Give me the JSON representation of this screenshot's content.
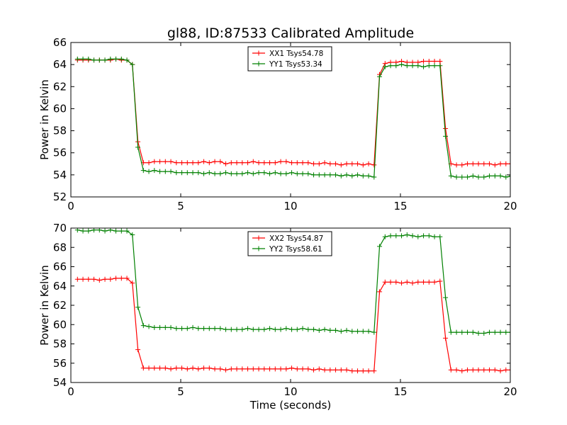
{
  "title": "gl88, ID:87533 Calibrated Amplitude",
  "chart_data": [
    {
      "type": "line",
      "title": "gl88, ID:87533 Calibrated Amplitude",
      "xlabel": "",
      "ylabel": "Power in Kelvin",
      "xlim": [
        0,
        20
      ],
      "ylim": [
        52,
        66
      ],
      "xticks": [
        0,
        5,
        10,
        15,
        20
      ],
      "yticks": [
        52,
        54,
        56,
        58,
        60,
        62,
        64,
        66
      ],
      "legend_position": "top-center",
      "grid": false,
      "series": [
        {
          "name": "XX1 Tsys54.78",
          "color": "#ff0000",
          "x": [
            0.3,
            0.55,
            0.8,
            1.05,
            1.3,
            1.55,
            1.8,
            2.05,
            2.3,
            2.55,
            2.8,
            3.05,
            3.3,
            3.55,
            3.8,
            4.05,
            4.3,
            4.55,
            4.8,
            5.05,
            5.3,
            5.55,
            5.8,
            6.05,
            6.3,
            6.55,
            6.8,
            7.05,
            7.3,
            7.55,
            7.8,
            8.05,
            8.3,
            8.55,
            8.8,
            9.05,
            9.3,
            9.55,
            9.8,
            10.05,
            10.3,
            10.55,
            10.8,
            11.05,
            11.3,
            11.55,
            11.8,
            12.05,
            12.3,
            12.55,
            12.8,
            13.05,
            13.3,
            13.55,
            13.8,
            14.05,
            14.3,
            14.55,
            14.8,
            15.05,
            15.3,
            15.55,
            15.8,
            16.05,
            16.3,
            16.55,
            16.8,
            17.05,
            17.3,
            17.55,
            17.8,
            18.05,
            18.3,
            18.55,
            18.8,
            19.05,
            19.3,
            19.55,
            19.8,
            20.05
          ],
          "y": [
            64.4,
            64.4,
            64.4,
            64.4,
            64.4,
            64.4,
            64.4,
            64.5,
            64.4,
            64.4,
            64.0,
            57.0,
            55.1,
            55.1,
            55.2,
            55.2,
            55.2,
            55.2,
            55.1,
            55.1,
            55.1,
            55.1,
            55.1,
            55.2,
            55.1,
            55.2,
            55.2,
            55.0,
            55.1,
            55.1,
            55.1,
            55.1,
            55.2,
            55.1,
            55.1,
            55.1,
            55.1,
            55.2,
            55.2,
            55.1,
            55.1,
            55.1,
            55.1,
            55.0,
            55.0,
            55.1,
            55.0,
            55.0,
            54.9,
            55.0,
            55.0,
            55.0,
            54.9,
            55.0,
            54.9,
            63.1,
            64.1,
            64.2,
            64.2,
            64.3,
            64.2,
            64.2,
            64.2,
            64.3,
            64.3,
            64.3,
            64.3,
            58.2,
            55.0,
            54.9,
            54.9,
            55.0,
            55.0,
            55.0,
            55.0,
            55.0,
            54.9,
            55.0,
            55.0,
            55.0
          ]
        },
        {
          "name": "YY1 Tsys53.34",
          "color": "#008000",
          "x": [
            0.3,
            0.55,
            0.8,
            1.05,
            1.3,
            1.55,
            1.8,
            2.05,
            2.3,
            2.55,
            2.8,
            3.05,
            3.3,
            3.55,
            3.8,
            4.05,
            4.3,
            4.55,
            4.8,
            5.05,
            5.3,
            5.55,
            5.8,
            6.05,
            6.3,
            6.55,
            6.8,
            7.05,
            7.3,
            7.55,
            7.8,
            8.05,
            8.3,
            8.55,
            8.8,
            9.05,
            9.3,
            9.55,
            9.8,
            10.05,
            10.3,
            10.55,
            10.8,
            11.05,
            11.3,
            11.55,
            11.8,
            12.05,
            12.3,
            12.55,
            12.8,
            13.05,
            13.3,
            13.55,
            13.8,
            14.05,
            14.3,
            14.55,
            14.8,
            15.05,
            15.3,
            15.55,
            15.8,
            16.05,
            16.3,
            16.55,
            16.8,
            17.05,
            17.3,
            17.55,
            17.8,
            18.05,
            18.3,
            18.55,
            18.8,
            19.05,
            19.3,
            19.55,
            19.8,
            20.05
          ],
          "y": [
            64.5,
            64.5,
            64.5,
            64.4,
            64.4,
            64.4,
            64.5,
            64.5,
            64.5,
            64.4,
            64.0,
            56.5,
            54.4,
            54.3,
            54.4,
            54.3,
            54.3,
            54.3,
            54.2,
            54.2,
            54.2,
            54.2,
            54.2,
            54.1,
            54.2,
            54.1,
            54.1,
            54.2,
            54.1,
            54.1,
            54.1,
            54.2,
            54.1,
            54.2,
            54.2,
            54.1,
            54.2,
            54.1,
            54.1,
            54.2,
            54.1,
            54.1,
            54.1,
            54.0,
            54.0,
            54.0,
            54.0,
            54.0,
            53.9,
            54.0,
            53.9,
            54.0,
            53.9,
            53.9,
            53.8,
            62.9,
            63.8,
            63.9,
            63.9,
            64.0,
            63.9,
            63.9,
            63.9,
            63.8,
            63.9,
            63.9,
            63.9,
            57.5,
            53.9,
            53.8,
            53.8,
            53.8,
            53.9,
            53.8,
            53.8,
            53.9,
            53.9,
            53.9,
            53.8,
            53.9
          ]
        }
      ]
    },
    {
      "type": "line",
      "title": "",
      "xlabel": "Time (seconds)",
      "ylabel": "Power in Kelvin",
      "xlim": [
        0,
        20
      ],
      "ylim": [
        54,
        70
      ],
      "xticks": [
        0,
        5,
        10,
        15,
        20
      ],
      "yticks": [
        54,
        56,
        58,
        60,
        62,
        64,
        66,
        68,
        70
      ],
      "legend_position": "top-center",
      "grid": false,
      "series": [
        {
          "name": "XX2 Tsys54.87",
          "color": "#ff0000",
          "x": [
            0.3,
            0.55,
            0.8,
            1.05,
            1.3,
            1.55,
            1.8,
            2.05,
            2.3,
            2.55,
            2.8,
            3.05,
            3.3,
            3.55,
            3.8,
            4.05,
            4.3,
            4.55,
            4.8,
            5.05,
            5.3,
            5.55,
            5.8,
            6.05,
            6.3,
            6.55,
            6.8,
            7.05,
            7.3,
            7.55,
            7.8,
            8.05,
            8.3,
            8.55,
            8.8,
            9.05,
            9.3,
            9.55,
            9.8,
            10.05,
            10.3,
            10.55,
            10.8,
            11.05,
            11.3,
            11.55,
            11.8,
            12.05,
            12.3,
            12.55,
            12.8,
            13.05,
            13.3,
            13.55,
            13.8,
            14.05,
            14.3,
            14.55,
            14.8,
            15.05,
            15.3,
            15.55,
            15.8,
            16.05,
            16.3,
            16.55,
            16.8,
            17.05,
            17.3,
            17.55,
            17.8,
            18.05,
            18.3,
            18.55,
            18.8,
            19.05,
            19.3,
            19.55,
            19.8,
            20.05
          ],
          "y": [
            64.7,
            64.7,
            64.7,
            64.7,
            64.6,
            64.7,
            64.7,
            64.8,
            64.8,
            64.8,
            64.3,
            57.4,
            55.5,
            55.5,
            55.5,
            55.5,
            55.5,
            55.4,
            55.5,
            55.5,
            55.4,
            55.5,
            55.4,
            55.5,
            55.5,
            55.4,
            55.4,
            55.3,
            55.4,
            55.4,
            55.4,
            55.4,
            55.4,
            55.4,
            55.4,
            55.4,
            55.4,
            55.4,
            55.4,
            55.5,
            55.4,
            55.4,
            55.4,
            55.3,
            55.4,
            55.3,
            55.3,
            55.3,
            55.3,
            55.3,
            55.2,
            55.2,
            55.2,
            55.2,
            55.2,
            63.4,
            64.4,
            64.4,
            64.4,
            64.3,
            64.4,
            64.3,
            64.4,
            64.4,
            64.4,
            64.4,
            64.5,
            58.6,
            55.3,
            55.3,
            55.2,
            55.3,
            55.3,
            55.3,
            55.3,
            55.3,
            55.3,
            55.2,
            55.3,
            55.3
          ]
        },
        {
          "name": "YY2 Tsys58.61",
          "color": "#008000",
          "x": [
            0.3,
            0.55,
            0.8,
            1.05,
            1.3,
            1.55,
            1.8,
            2.05,
            2.3,
            2.55,
            2.8,
            3.05,
            3.3,
            3.55,
            3.8,
            4.05,
            4.3,
            4.55,
            4.8,
            5.05,
            5.3,
            5.55,
            5.8,
            6.05,
            6.3,
            6.55,
            6.8,
            7.05,
            7.3,
            7.55,
            7.8,
            8.05,
            8.3,
            8.55,
            8.8,
            9.05,
            9.3,
            9.55,
            9.8,
            10.05,
            10.3,
            10.55,
            10.8,
            11.05,
            11.3,
            11.55,
            11.8,
            12.05,
            12.3,
            12.55,
            12.8,
            13.05,
            13.3,
            13.55,
            13.8,
            14.05,
            14.3,
            14.55,
            14.8,
            15.05,
            15.3,
            15.55,
            15.8,
            16.05,
            16.3,
            16.55,
            16.8,
            17.05,
            17.3,
            17.55,
            17.8,
            18.05,
            18.3,
            18.55,
            18.8,
            19.05,
            19.3,
            19.55,
            19.8,
            20.05
          ],
          "y": [
            69.8,
            69.7,
            69.7,
            69.8,
            69.8,
            69.7,
            69.8,
            69.7,
            69.7,
            69.7,
            69.3,
            61.8,
            59.9,
            59.8,
            59.7,
            59.7,
            59.7,
            59.7,
            59.6,
            59.6,
            59.6,
            59.7,
            59.6,
            59.6,
            59.6,
            59.6,
            59.6,
            59.5,
            59.5,
            59.5,
            59.5,
            59.6,
            59.5,
            59.5,
            59.5,
            59.6,
            59.5,
            59.5,
            59.6,
            59.5,
            59.5,
            59.6,
            59.5,
            59.5,
            59.4,
            59.5,
            59.4,
            59.4,
            59.3,
            59.4,
            59.3,
            59.3,
            59.3,
            59.3,
            59.2,
            68.1,
            69.1,
            69.2,
            69.2,
            69.2,
            69.3,
            69.2,
            69.1,
            69.2,
            69.2,
            69.1,
            69.1,
            62.8,
            59.2,
            59.2,
            59.2,
            59.2,
            59.2,
            59.1,
            59.1,
            59.2,
            59.2,
            59.2,
            59.2,
            59.2
          ]
        }
      ]
    }
  ]
}
